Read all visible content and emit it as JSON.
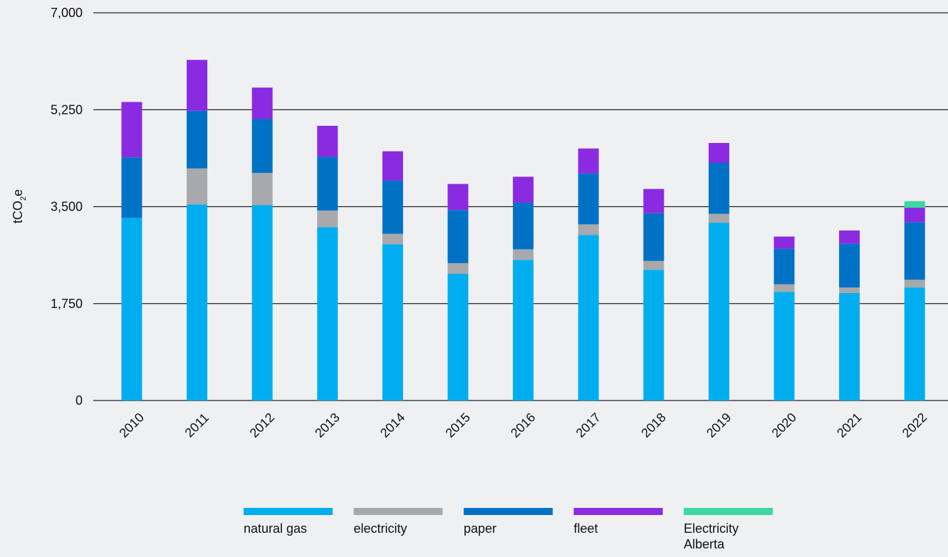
{
  "chart_data": {
    "type": "bar",
    "stacked": true,
    "title": "",
    "xlabel": "",
    "ylabel_main": "tCO",
    "ylabel_sub": "2",
    "ylabel_tail": "e",
    "ylim": [
      0,
      7000
    ],
    "yticks": [
      0,
      1750,
      3500,
      5250,
      7000
    ],
    "ytick_labels": [
      "0",
      "1,750",
      "3,500",
      "5,250",
      "7,000"
    ],
    "grid": true,
    "legend_position": "bottom",
    "categories": [
      "2010",
      "2011",
      "2012",
      "2013",
      "2014",
      "2015",
      "2016",
      "2017",
      "2018",
      "2019",
      "2020",
      "2021",
      "2022"
    ],
    "series": [
      {
        "name": "natural gas",
        "color": "#00aeef",
        "values": [
          3300,
          3540,
          3530,
          3130,
          2820,
          2290,
          2540,
          2990,
          2360,
          3210,
          1960,
          1940,
          2040
        ]
      },
      {
        "name": "electricity",
        "color": "#a7a9ac",
        "values": [
          0,
          650,
          580,
          300,
          190,
          190,
          190,
          190,
          160,
          160,
          140,
          100,
          140
        ]
      },
      {
        "name": "paper",
        "color": "#0072c6",
        "values": [
          1090,
          1040,
          970,
          970,
          960,
          960,
          840,
          920,
          860,
          920,
          640,
          790,
          1040
        ]
      },
      {
        "name": "fleet",
        "color": "#8a2be2",
        "values": [
          1000,
          920,
          570,
          560,
          530,
          470,
          470,
          450,
          440,
          360,
          220,
          240,
          260
        ]
      },
      {
        "name": "Electricity Alberta",
        "color": "#3dd8a0",
        "values": [
          0,
          0,
          0,
          0,
          0,
          0,
          0,
          0,
          0,
          0,
          0,
          0,
          120
        ]
      }
    ],
    "legend": [
      {
        "label_lines": [
          "natural gas"
        ],
        "color": "#00aeef"
      },
      {
        "label_lines": [
          "electricity"
        ],
        "color": "#a7a9ac"
      },
      {
        "label_lines": [
          "paper"
        ],
        "color": "#0072c6"
      },
      {
        "label_lines": [
          "fleet"
        ],
        "color": "#8a2be2"
      },
      {
        "label_lines": [
          "Electricity",
          "Alberta"
        ],
        "color": "#3dd8a0"
      }
    ]
  }
}
